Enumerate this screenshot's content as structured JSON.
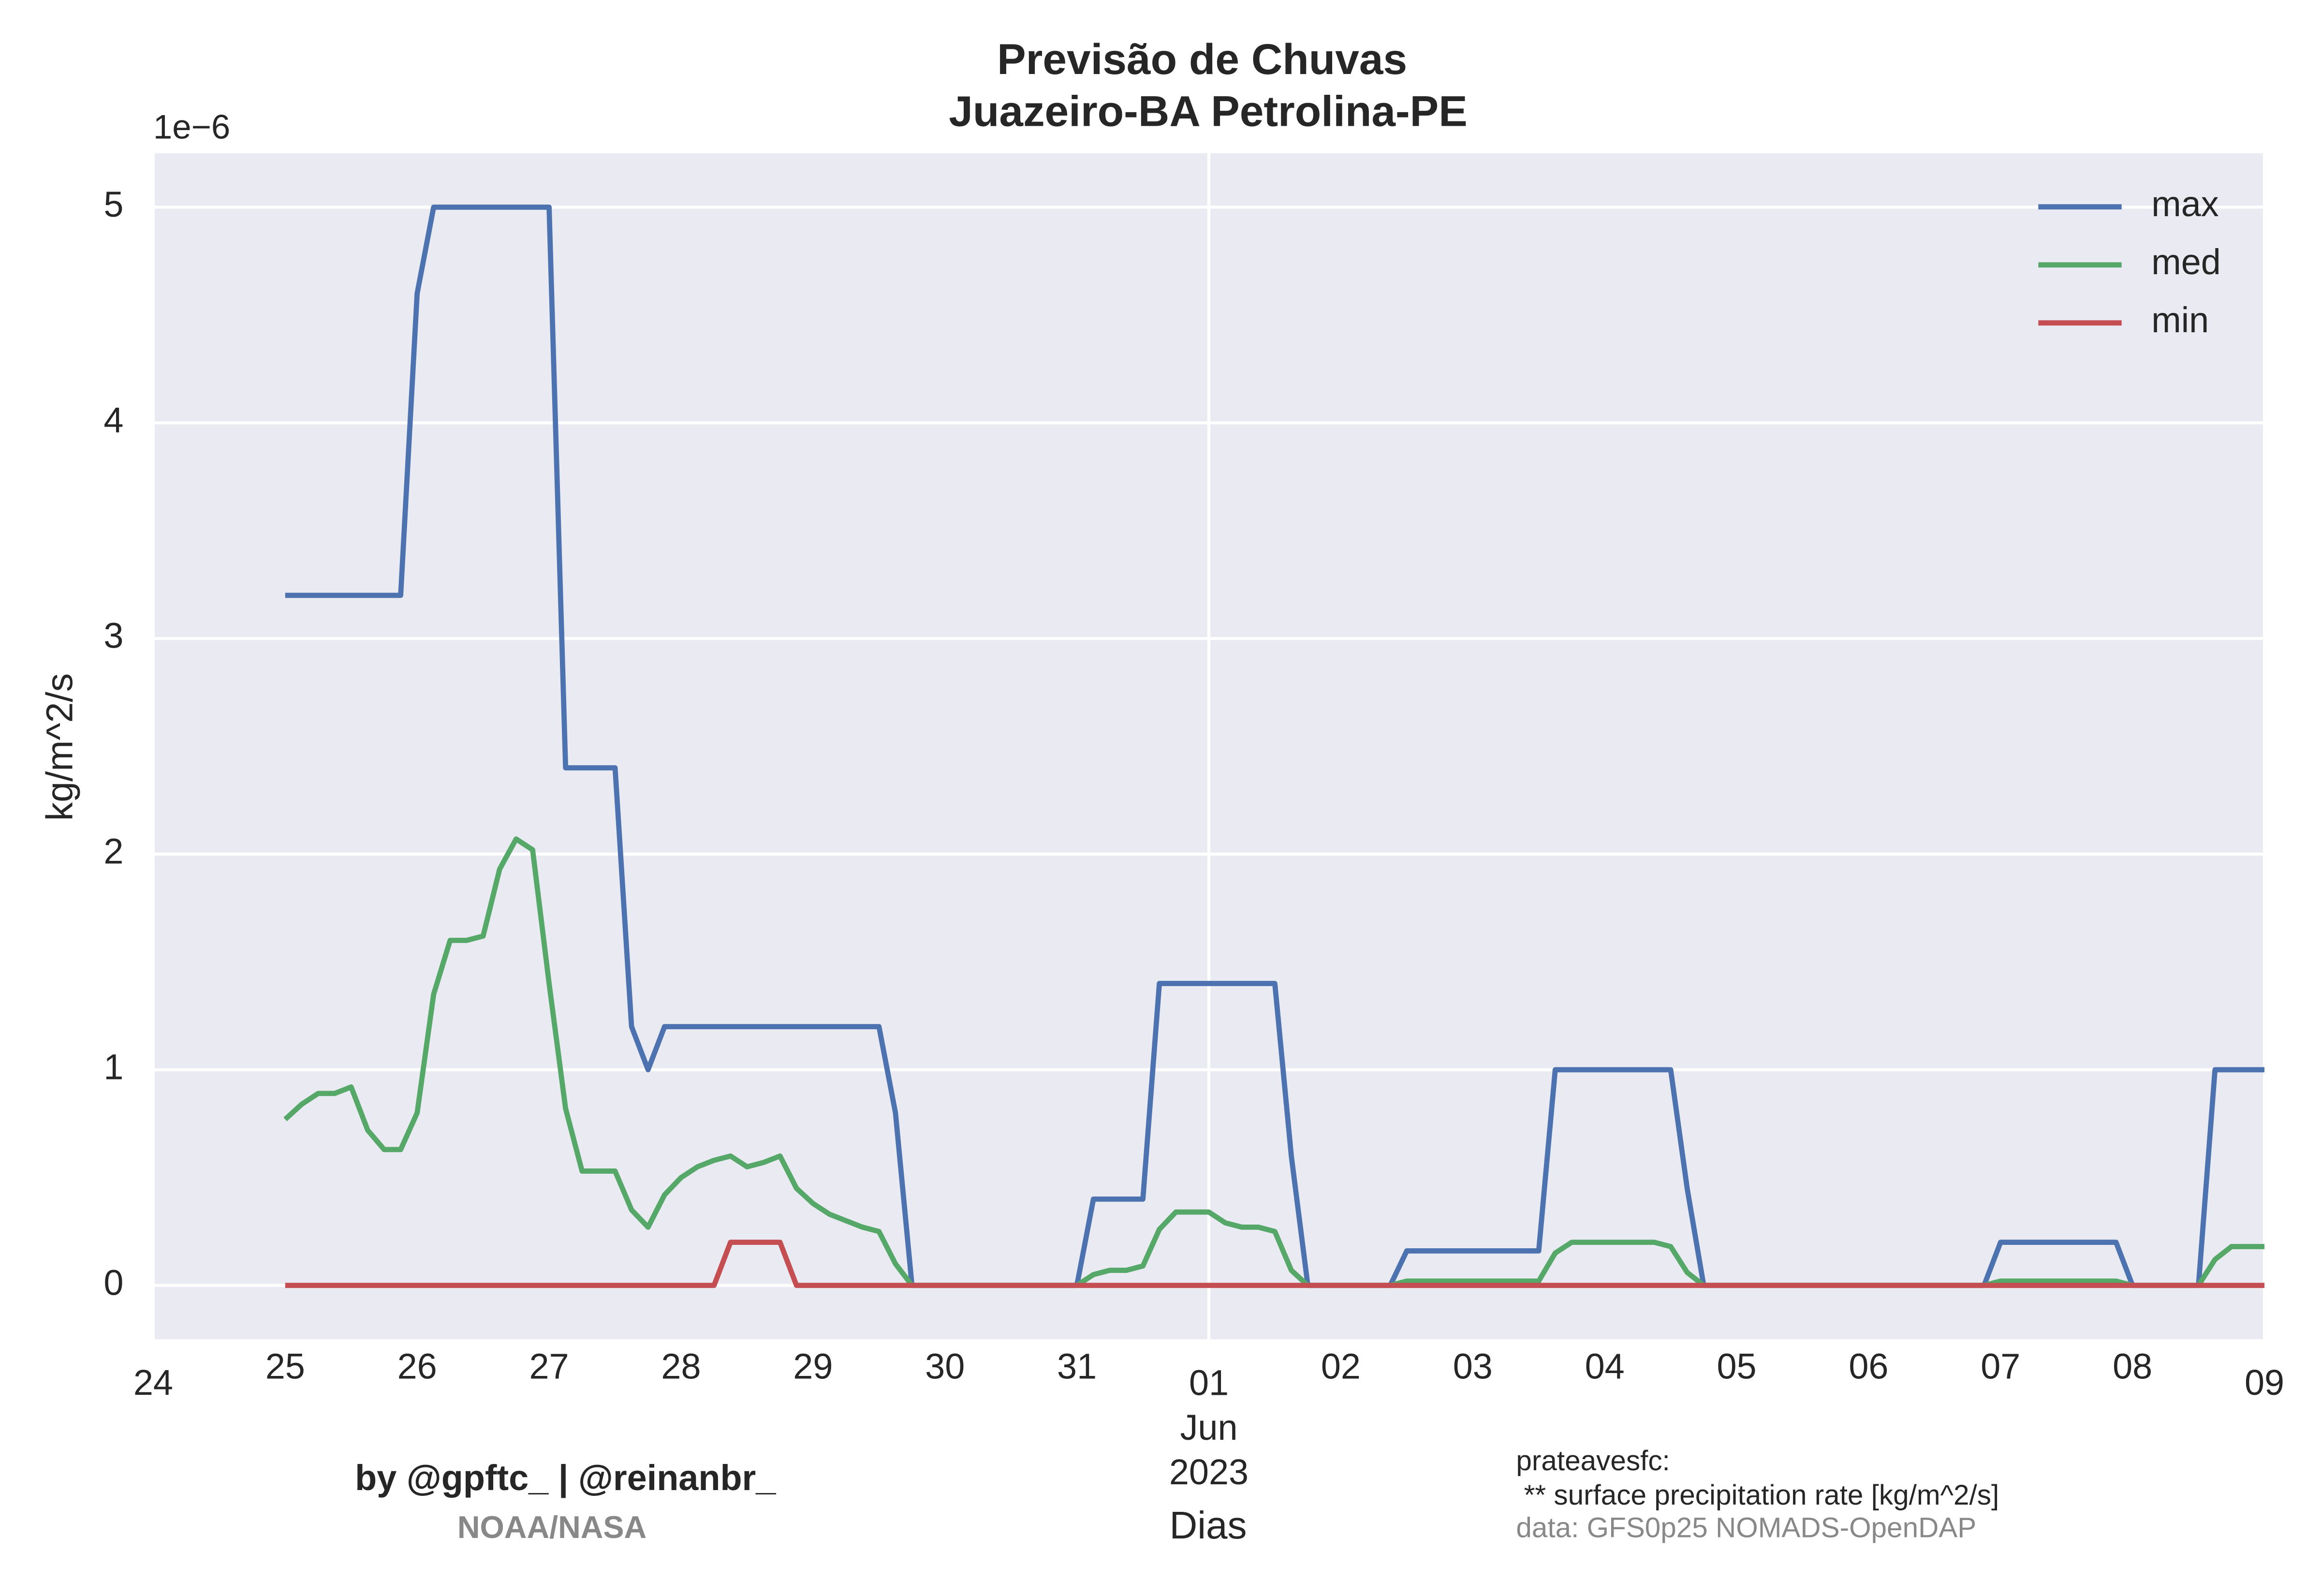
{
  "chart_data": {
    "type": "line",
    "title": "Previsão de Chuvas",
    "subtitle": "Juazeiro-BA Petrolina-PE",
    "y_offset_label": "1e−6",
    "ylabel": "kg/m^2/s",
    "xlabel": "Dias",
    "credit": "by @gpftc_ | @reinanbr_",
    "source": "NOAA/NASA",
    "variable": "prateavesfc:",
    "variable_description": " ** surface precipitation rate [kg/m^2/s]",
    "data_source": "data: GFS0p25 NOMADS-OpenDAP",
    "legend": "upper right",
    "grid": true,
    "x": [
      "2023-05-25 00:00",
      "2023-05-25 03:00",
      "2023-05-25 06:00",
      "2023-05-25 09:00",
      "2023-05-25 12:00",
      "2023-05-25 15:00",
      "2023-05-25 18:00",
      "2023-05-25 21:00",
      "2023-05-26 00:00",
      "2023-05-26 03:00",
      "2023-05-26 06:00",
      "2023-05-26 09:00",
      "2023-05-26 12:00",
      "2023-05-26 15:00",
      "2023-05-26 18:00",
      "2023-05-26 21:00",
      "2023-05-27 00:00",
      "2023-05-27 03:00",
      "2023-05-27 06:00",
      "2023-05-27 09:00",
      "2023-05-27 12:00",
      "2023-05-27 15:00",
      "2023-05-27 18:00",
      "2023-05-27 21:00",
      "2023-05-28 00:00",
      "2023-05-28 03:00",
      "2023-05-28 06:00",
      "2023-05-28 09:00",
      "2023-05-28 12:00",
      "2023-05-28 15:00",
      "2023-05-28 18:00",
      "2023-05-28 21:00",
      "2023-05-29 00:00",
      "2023-05-29 03:00",
      "2023-05-29 06:00",
      "2023-05-29 09:00",
      "2023-05-29 12:00",
      "2023-05-29 15:00",
      "2023-05-29 18:00",
      "2023-05-29 21:00",
      "2023-05-30 00:00",
      "2023-05-30 03:00",
      "2023-05-30 06:00",
      "2023-05-30 09:00",
      "2023-05-30 12:00",
      "2023-05-30 15:00",
      "2023-05-30 18:00",
      "2023-05-30 21:00",
      "2023-05-31 00:00",
      "2023-05-31 03:00",
      "2023-05-31 06:00",
      "2023-05-31 09:00",
      "2023-05-31 12:00",
      "2023-05-31 15:00",
      "2023-05-31 18:00",
      "2023-05-31 21:00",
      "2023-06-01 00:00",
      "2023-06-01 03:00",
      "2023-06-01 06:00",
      "2023-06-01 09:00",
      "2023-06-01 12:00",
      "2023-06-01 15:00",
      "2023-06-01 18:00",
      "2023-06-01 21:00",
      "2023-06-02 00:00",
      "2023-06-02 03:00",
      "2023-06-02 06:00",
      "2023-06-02 09:00",
      "2023-06-02 12:00",
      "2023-06-02 15:00",
      "2023-06-02 18:00",
      "2023-06-02 21:00",
      "2023-06-03 00:00",
      "2023-06-03 03:00",
      "2023-06-03 06:00",
      "2023-06-03 09:00",
      "2023-06-03 12:00",
      "2023-06-03 15:00",
      "2023-06-03 18:00",
      "2023-06-03 21:00",
      "2023-06-04 00:00",
      "2023-06-04 03:00",
      "2023-06-04 06:00",
      "2023-06-04 09:00",
      "2023-06-04 12:00",
      "2023-06-04 15:00",
      "2023-06-04 18:00",
      "2023-06-04 21:00",
      "2023-06-05 00:00",
      "2023-06-05 03:00",
      "2023-06-05 06:00",
      "2023-06-05 09:00",
      "2023-06-05 12:00",
      "2023-06-05 15:00",
      "2023-06-05 18:00",
      "2023-06-05 21:00",
      "2023-06-06 00:00",
      "2023-06-06 03:00",
      "2023-06-06 06:00",
      "2023-06-06 09:00",
      "2023-06-06 12:00",
      "2023-06-06 15:00",
      "2023-06-06 18:00",
      "2023-06-06 21:00",
      "2023-06-07 00:00",
      "2023-06-07 03:00",
      "2023-06-07 06:00",
      "2023-06-07 09:00",
      "2023-06-07 12:00",
      "2023-06-07 15:00",
      "2023-06-07 18:00",
      "2023-06-07 21:00",
      "2023-06-08 00:00",
      "2023-06-08 03:00",
      "2023-06-08 06:00",
      "2023-06-08 09:00",
      "2023-06-08 12:00",
      "2023-06-08 15:00",
      "2023-06-08 18:00",
      "2023-06-08 21:00",
      "2023-06-09 00:00"
    ],
    "series": [
      {
        "name": "max",
        "color": "#4c72b0",
        "values": [
          3.2,
          3.2,
          3.2,
          3.2,
          3.2,
          3.2,
          3.2,
          3.2,
          4.6,
          5,
          5,
          5,
          5,
          5,
          5,
          5,
          5,
          2.4,
          2.4,
          2.4,
          2.4,
          1.2,
          1.0,
          1.2,
          1.2,
          1.2,
          1.2,
          1.2,
          1.2,
          1.2,
          1.2,
          1.2,
          1.2,
          1.2,
          1.2,
          1.2,
          1.2,
          0.8,
          0,
          0,
          0,
          0,
          0,
          0,
          0,
          0,
          0,
          0,
          0,
          0.4,
          0.4,
          0.4,
          0.4,
          1.4,
          1.4,
          1.4,
          1.4,
          1.4,
          1.4,
          1.4,
          1.4,
          0.6,
          0,
          0,
          0,
          0,
          0,
          0,
          0.16,
          0.16,
          0.16,
          0.16,
          0.16,
          0.16,
          0.16,
          0.16,
          0.16,
          1.0,
          1.0,
          1.0,
          1.0,
          1.0,
          1.0,
          1.0,
          1.0,
          0.45,
          0,
          0,
          0,
          0,
          0,
          0,
          0,
          0,
          0,
          0,
          0,
          0,
          0,
          0,
          0,
          0,
          0,
          0,
          0.2,
          0.2,
          0.2,
          0.2,
          0.2,
          0.2,
          0.2,
          0.2,
          0,
          0,
          0,
          0,
          0,
          1.0,
          1.0,
          1.0,
          1.0
        ]
      },
      {
        "name": "med",
        "color": "#55a868",
        "values": [
          0.77,
          0.84,
          0.89,
          0.89,
          0.92,
          0.72,
          0.63,
          0.63,
          0.8,
          1.35,
          1.6,
          1.6,
          1.62,
          1.93,
          2.07,
          2.02,
          1.4,
          0.82,
          0.53,
          0.53,
          0.53,
          0.35,
          0.27,
          0.42,
          0.5,
          0.55,
          0.58,
          0.6,
          0.55,
          0.57,
          0.6,
          0.45,
          0.38,
          0.33,
          0.3,
          0.27,
          0.25,
          0.1,
          0,
          0,
          0,
          0,
          0,
          0,
          0,
          0,
          0,
          0,
          0,
          0.05,
          0.07,
          0.07,
          0.09,
          0.26,
          0.34,
          0.34,
          0.34,
          0.29,
          0.27,
          0.27,
          0.25,
          0.07,
          0,
          0,
          0,
          0,
          0,
          0,
          0.02,
          0.02,
          0.02,
          0.02,
          0.02,
          0.02,
          0.02,
          0.02,
          0.02,
          0.15,
          0.2,
          0.2,
          0.2,
          0.2,
          0.2,
          0.2,
          0.18,
          0.06,
          0,
          0,
          0,
          0,
          0,
          0,
          0,
          0,
          0,
          0,
          0,
          0,
          0,
          0,
          0,
          0,
          0,
          0,
          0.02,
          0.02,
          0.02,
          0.02,
          0.02,
          0.02,
          0.02,
          0.02,
          0,
          0,
          0,
          0,
          0,
          0.12,
          0.18,
          0.18,
          0.18
        ]
      },
      {
        "name": "min",
        "color": "#c44e52",
        "values": [
          0,
          0,
          0,
          0,
          0,
          0,
          0,
          0,
          0,
          0,
          0,
          0,
          0,
          0,
          0,
          0,
          0,
          0,
          0,
          0,
          0,
          0,
          0,
          0,
          0,
          0,
          0,
          0.2,
          0.2,
          0.2,
          0.2,
          0,
          0,
          0,
          0,
          0,
          0,
          0,
          0,
          0,
          0,
          0,
          0,
          0,
          0,
          0,
          0,
          0,
          0,
          0,
          0,
          0,
          0,
          0,
          0,
          0,
          0,
          0,
          0,
          0,
          0,
          0,
          0,
          0,
          0,
          0,
          0,
          0,
          0,
          0,
          0,
          0,
          0,
          0,
          0,
          0,
          0,
          0,
          0,
          0,
          0,
          0,
          0,
          0,
          0,
          0,
          0,
          0,
          0,
          0,
          0,
          0,
          0,
          0,
          0,
          0,
          0,
          0,
          0,
          0,
          0,
          0,
          0,
          0,
          0,
          0,
          0,
          0,
          0,
          0,
          0,
          0,
          0,
          0,
          0,
          0,
          0,
          0,
          0,
          0,
          0
        ]
      }
    ],
    "xlim": [
      "2023-05-24 00:00",
      "2023-06-09 00:00"
    ],
    "xticks": [
      {
        "value": "2023-05-24 00:00",
        "label": "24"
      },
      {
        "value": "2023-05-25 00:00",
        "label": "25"
      },
      {
        "value": "2023-05-26 00:00",
        "label": "26"
      },
      {
        "value": "2023-05-27 00:00",
        "label": "27"
      },
      {
        "value": "2023-05-28 00:00",
        "label": "28"
      },
      {
        "value": "2023-05-29 00:00",
        "label": "29"
      },
      {
        "value": "2023-05-30 00:00",
        "label": "30"
      },
      {
        "value": "2023-05-31 00:00",
        "label": "31"
      },
      {
        "value": "2023-06-01 00:00",
        "label": "01\nJun\n2023"
      },
      {
        "value": "2023-06-02 00:00",
        "label": "02"
      },
      {
        "value": "2023-06-03 00:00",
        "label": "03"
      },
      {
        "value": "2023-06-04 00:00",
        "label": "04"
      },
      {
        "value": "2023-06-05 00:00",
        "label": "05"
      },
      {
        "value": "2023-06-06 00:00",
        "label": "06"
      },
      {
        "value": "2023-06-07 00:00",
        "label": "07"
      },
      {
        "value": "2023-06-08 00:00",
        "label": "08"
      },
      {
        "value": "2023-06-09 00:00",
        "label": "09"
      }
    ],
    "ylim": [
      -0.25,
      5.25
    ],
    "yticks": [
      0,
      1,
      2,
      3,
      4,
      5
    ]
  }
}
